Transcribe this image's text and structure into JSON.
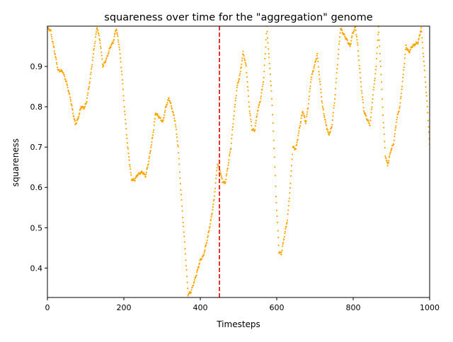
{
  "chart_data": {
    "type": "scatter",
    "title": "squareness over time for the \"aggregation\" genome",
    "xlabel": "Timesteps",
    "ylabel": "squareness",
    "xlim": [
      0,
      1000
    ],
    "ylim": [
      0.327,
      1.0
    ],
    "xticks": [
      0,
      200,
      400,
      600,
      800,
      1000
    ],
    "yticks": [
      0.4,
      0.5,
      0.6,
      0.7,
      0.8,
      0.9
    ],
    "grid": false,
    "legend": "none",
    "marker_color": "#ffa500",
    "vline": {
      "x": 450,
      "color": "#e00000",
      "style": "dashed"
    },
    "keypoints": [
      [
        0,
        0.995
      ],
      [
        8,
        0.99
      ],
      [
        15,
        0.955
      ],
      [
        22,
        0.92
      ],
      [
        28,
        0.89
      ],
      [
        40,
        0.888
      ],
      [
        50,
        0.86
      ],
      [
        60,
        0.82
      ],
      [
        67,
        0.785
      ],
      [
        73,
        0.757
      ],
      [
        80,
        0.77
      ],
      [
        88,
        0.8
      ],
      [
        96,
        0.797
      ],
      [
        102,
        0.81
      ],
      [
        112,
        0.87
      ],
      [
        122,
        0.945
      ],
      [
        130,
        0.998
      ],
      [
        138,
        0.96
      ],
      [
        145,
        0.9
      ],
      [
        155,
        0.92
      ],
      [
        165,
        0.95
      ],
      [
        172,
        0.96
      ],
      [
        180,
        0.995
      ],
      [
        188,
        0.95
      ],
      [
        195,
        0.88
      ],
      [
        202,
        0.79
      ],
      [
        210,
        0.7
      ],
      [
        220,
        0.62
      ],
      [
        228,
        0.618
      ],
      [
        236,
        0.632
      ],
      [
        248,
        0.638
      ],
      [
        257,
        0.628
      ],
      [
        266,
        0.67
      ],
      [
        276,
        0.73
      ],
      [
        283,
        0.785
      ],
      [
        292,
        0.775
      ],
      [
        302,
        0.762
      ],
      [
        310,
        0.8
      ],
      [
        318,
        0.822
      ],
      [
        326,
        0.795
      ],
      [
        334,
        0.765
      ],
      [
        342,
        0.7
      ],
      [
        350,
        0.58
      ],
      [
        360,
        0.45
      ],
      [
        368,
        0.335
      ],
      [
        375,
        0.34
      ],
      [
        382,
        0.36
      ],
      [
        390,
        0.385
      ],
      [
        400,
        0.42
      ],
      [
        408,
        0.43
      ],
      [
        418,
        0.47
      ],
      [
        428,
        0.52
      ],
      [
        436,
        0.57
      ],
      [
        445,
        0.66
      ],
      [
        452,
        0.64
      ],
      [
        458,
        0.615
      ],
      [
        465,
        0.61
      ],
      [
        472,
        0.65
      ],
      [
        480,
        0.7
      ],
      [
        488,
        0.78
      ],
      [
        496,
        0.848
      ],
      [
        504,
        0.88
      ],
      [
        512,
        0.935
      ],
      [
        520,
        0.9
      ],
      [
        528,
        0.8
      ],
      [
        535,
        0.745
      ],
      [
        542,
        0.74
      ],
      [
        550,
        0.79
      ],
      [
        558,
        0.82
      ],
      [
        566,
        0.87
      ],
      [
        574,
        0.998
      ],
      [
        580,
        0.92
      ],
      [
        586,
        0.84
      ],
      [
        592,
        0.72
      ],
      [
        598,
        0.58
      ],
      [
        606,
        0.44
      ],
      [
        612,
        0.435
      ],
      [
        620,
        0.48
      ],
      [
        628,
        0.52
      ],
      [
        636,
        0.61
      ],
      [
        642,
        0.7
      ],
      [
        650,
        0.695
      ],
      [
        660,
        0.75
      ],
      [
        668,
        0.79
      ],
      [
        676,
        0.76
      ],
      [
        682,
        0.8
      ],
      [
        690,
        0.87
      ],
      [
        698,
        0.9
      ],
      [
        706,
        0.93
      ],
      [
        712,
        0.87
      ],
      [
        720,
        0.8
      ],
      [
        728,
        0.76
      ],
      [
        736,
        0.73
      ],
      [
        744,
        0.75
      ],
      [
        752,
        0.82
      ],
      [
        760,
        0.92
      ],
      [
        767,
        0.995
      ],
      [
        775,
        0.98
      ],
      [
        784,
        0.965
      ],
      [
        792,
        0.95
      ],
      [
        798,
        0.98
      ],
      [
        806,
        0.998
      ],
      [
        812,
        0.95
      ],
      [
        820,
        0.86
      ],
      [
        828,
        0.79
      ],
      [
        836,
        0.77
      ],
      [
        844,
        0.755
      ],
      [
        852,
        0.83
      ],
      [
        860,
        0.9
      ],
      [
        866,
        0.998
      ],
      [
        872,
        0.9
      ],
      [
        878,
        0.78
      ],
      [
        884,
        0.68
      ],
      [
        890,
        0.655
      ],
      [
        898,
        0.69
      ],
      [
        906,
        0.71
      ],
      [
        914,
        0.77
      ],
      [
        922,
        0.8
      ],
      [
        930,
        0.87
      ],
      [
        938,
        0.95
      ],
      [
        946,
        0.935
      ],
      [
        954,
        0.95
      ],
      [
        962,
        0.955
      ],
      [
        970,
        0.96
      ],
      [
        978,
        0.995
      ],
      [
        986,
        0.9
      ],
      [
        994,
        0.8
      ],
      [
        1000,
        0.705
      ]
    ]
  }
}
